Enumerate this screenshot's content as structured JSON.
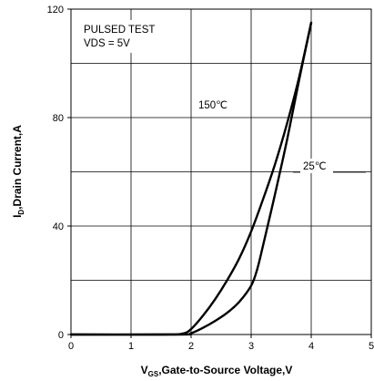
{
  "chart_data": {
    "type": "line",
    "xlabel": {
      "main": "V",
      "sub": "GS",
      "rest": ",Gate-to-Source Voltage,V"
    },
    "ylabel": {
      "main": "I",
      "sub": "D",
      "rest": ",Drain Current,A"
    },
    "xlim": [
      0,
      5
    ],
    "ylim": [
      0,
      120
    ],
    "xticks": [
      "0",
      "1",
      "2",
      "3",
      "4",
      "5"
    ],
    "yticks": [
      "0",
      "40",
      "80",
      "120"
    ],
    "grid": true,
    "annotations": [
      "PULSED TEST",
      "VDS = 5V"
    ],
    "series": [
      {
        "name": "150℃",
        "points": [
          [
            0,
            0
          ],
          [
            1.5,
            0
          ],
          [
            1.85,
            0.3
          ],
          [
            2.0,
            2
          ],
          [
            2.2,
            7
          ],
          [
            2.4,
            13
          ],
          [
            2.6,
            20
          ],
          [
            2.8,
            28
          ],
          [
            3.0,
            38
          ],
          [
            3.2,
            50
          ],
          [
            3.4,
            63
          ],
          [
            3.6,
            78
          ],
          [
            3.8,
            95
          ],
          [
            4.0,
            115
          ]
        ]
      },
      {
        "name": "25℃",
        "points": [
          [
            0,
            0
          ],
          [
            1.8,
            0
          ],
          [
            2.0,
            0.5
          ],
          [
            2.2,
            2.5
          ],
          [
            2.4,
            5
          ],
          [
            2.6,
            8
          ],
          [
            2.8,
            12
          ],
          [
            3.0,
            18
          ],
          [
            3.1,
            24
          ],
          [
            3.2,
            33
          ],
          [
            3.4,
            52
          ],
          [
            3.6,
            72
          ],
          [
            3.8,
            94
          ],
          [
            4.0,
            115
          ]
        ]
      }
    ]
  }
}
